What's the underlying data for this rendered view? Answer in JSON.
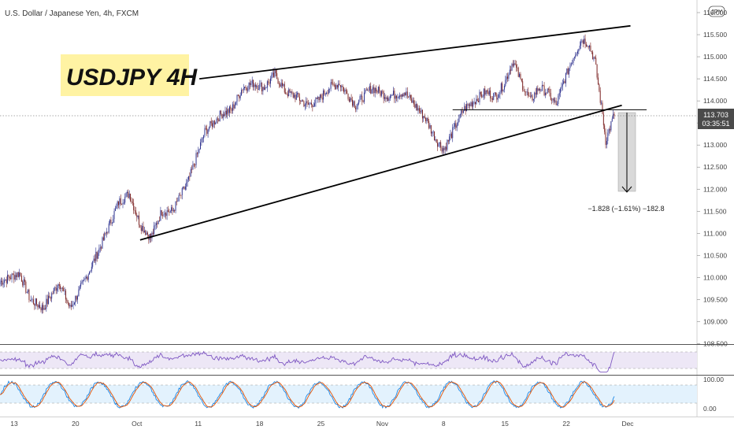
{
  "header": {
    "symbol_title": "U.S. Dollar / Japanese Yen, 4h, FXCM",
    "currency_badge": "JPY"
  },
  "annotation_title": "USDJPY 4H",
  "colors": {
    "up_candle": "#2a2e8c",
    "down_candle": "#7a1f1f",
    "trendline": "#000000",
    "price_label_bg": "#4a4a4a",
    "title_highlight": "#fff3a3",
    "rsi_line": "#7e57c2",
    "rsi_band": "#ede7f6",
    "stoch_k": "#1e88e5",
    "stoch_d": "#e65100",
    "stoch_band": "#e3f2fd",
    "measure_fill": "#d9d9d9"
  },
  "chart_data": [
    {
      "type": "candlestick",
      "y_axis_ticks": [
        "116.000",
        "115.500",
        "115.000",
        "114.500",
        "114.000",
        "113.500",
        "113.000",
        "112.500",
        "112.000",
        "111.500",
        "111.000",
        "110.500",
        "110.000",
        "109.500",
        "109.000",
        "108.500"
      ],
      "ylim": [
        108.5,
        116.0
      ],
      "x_axis_ticks": [
        "13",
        "20",
        "Oct",
        "11",
        "18",
        "25",
        "Nov",
        "8",
        "15",
        "22",
        "Dec"
      ],
      "current_price": "113.703",
      "countdown": "03:35:51",
      "measure_label": "−1.828 (−1.61%) −182.8",
      "anchors": [
        {
          "i": 0,
          "v": 109.9
        },
        {
          "i": 18,
          "v": 110.1
        },
        {
          "i": 28,
          "v": 109.5
        },
        {
          "i": 40,
          "v": 109.3
        },
        {
          "i": 55,
          "v": 109.9
        },
        {
          "i": 65,
          "v": 109.3
        },
        {
          "i": 80,
          "v": 110.0
        },
        {
          "i": 95,
          "v": 110.8
        },
        {
          "i": 110,
          "v": 111.7
        },
        {
          "i": 120,
          "v": 111.9
        },
        {
          "i": 130,
          "v": 111.2
        },
        {
          "i": 140,
          "v": 110.9
        },
        {
          "i": 150,
          "v": 111.5
        },
        {
          "i": 160,
          "v": 111.5
        },
        {
          "i": 175,
          "v": 112.2
        },
        {
          "i": 190,
          "v": 113.3
        },
        {
          "i": 205,
          "v": 113.7
        },
        {
          "i": 215,
          "v": 113.8
        },
        {
          "i": 225,
          "v": 114.3
        },
        {
          "i": 235,
          "v": 114.4
        },
        {
          "i": 245,
          "v": 114.3
        },
        {
          "i": 255,
          "v": 114.6
        },
        {
          "i": 265,
          "v": 114.2
        },
        {
          "i": 275,
          "v": 114.1
        },
        {
          "i": 285,
          "v": 113.9
        },
        {
          "i": 295,
          "v": 114.0
        },
        {
          "i": 305,
          "v": 114.3
        },
        {
          "i": 315,
          "v": 114.4
        },
        {
          "i": 330,
          "v": 113.9
        },
        {
          "i": 345,
          "v": 114.3
        },
        {
          "i": 360,
          "v": 114.1
        },
        {
          "i": 375,
          "v": 114.2
        },
        {
          "i": 385,
          "v": 113.9
        },
        {
          "i": 395,
          "v": 113.6
        },
        {
          "i": 405,
          "v": 113.1
        },
        {
          "i": 412,
          "v": 112.9
        },
        {
          "i": 420,
          "v": 113.3
        },
        {
          "i": 430,
          "v": 113.8
        },
        {
          "i": 440,
          "v": 114.0
        },
        {
          "i": 450,
          "v": 114.2
        },
        {
          "i": 460,
          "v": 114.1
        },
        {
          "i": 468,
          "v": 114.4
        },
        {
          "i": 476,
          "v": 114.9
        },
        {
          "i": 484,
          "v": 114.4
        },
        {
          "i": 492,
          "v": 114.0
        },
        {
          "i": 500,
          "v": 114.3
        },
        {
          "i": 508,
          "v": 114.2
        },
        {
          "i": 516,
          "v": 113.9
        },
        {
          "i": 524,
          "v": 114.5
        },
        {
          "i": 532,
          "v": 115.0
        },
        {
          "i": 540,
          "v": 115.4
        },
        {
          "i": 546,
          "v": 115.3
        },
        {
          "i": 552,
          "v": 114.9
        },
        {
          "i": 556,
          "v": 114.2
        },
        {
          "i": 559,
          "v": 113.7
        },
        {
          "i": 562,
          "v": 113.1
        },
        {
          "i": 566,
          "v": 113.4
        },
        {
          "i": 570,
          "v": 113.7
        }
      ],
      "trendlines": [
        {
          "from": {
            "i": 185,
            "v": 114.5
          },
          "to": {
            "i": 585,
            "v": 115.7
          }
        },
        {
          "from": {
            "i": 130,
            "v": 110.85
          },
          "to": {
            "i": 577,
            "v": 113.9
          }
        },
        {
          "from": {
            "i": 420,
            "v": 113.8
          },
          "to": {
            "i": 600,
            "v": 113.8
          }
        }
      ]
    },
    {
      "type": "line",
      "name": "oscillator-1",
      "ylim": [
        0,
        100
      ]
    },
    {
      "type": "line",
      "name": "oscillator-2",
      "y_axis_ticks": [
        "100.00",
        "0.00"
      ],
      "ylim": [
        0,
        100
      ]
    }
  ]
}
